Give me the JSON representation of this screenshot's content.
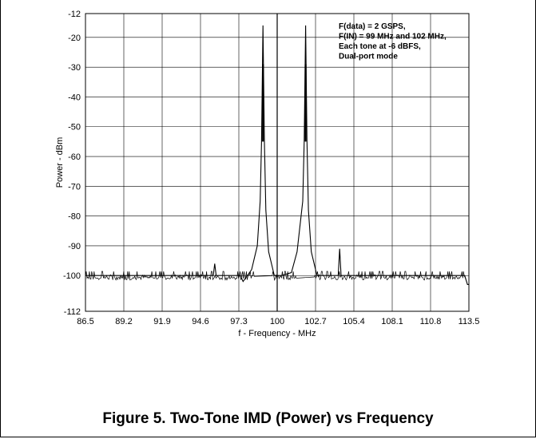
{
  "caption": "Figure 5. Two-Tone IMD (Power) vs Frequency",
  "chart_data": {
    "type": "line",
    "title": "",
    "xlabel": "f - Frequency - MHz",
    "ylabel": "Power - dBm",
    "xlim": [
      86.5,
      113.5
    ],
    "ylim": [
      -112,
      -12
    ],
    "x_ticks": [
      86.5,
      89.2,
      91.9,
      94.6,
      97.3,
      100,
      102.7,
      105.4,
      108.1,
      110.8,
      113.5
    ],
    "x_tick_labels": [
      "86.5",
      "89.2",
      "91.9",
      "94.6",
      "97.3",
      "100",
      "102.7",
      "105.4",
      "108.1",
      "110.8",
      "113.5"
    ],
    "y_ticks": [
      -12,
      -20,
      -30,
      -40,
      -50,
      -60,
      -70,
      -80,
      -90,
      -100,
      -112
    ],
    "y_tick_labels": [
      "-12",
      "-20",
      "-30",
      "-40",
      "-50",
      "-60",
      "-70",
      "-80",
      "-90",
      "-100",
      "-112"
    ],
    "grid": true,
    "noise_floor": -100,
    "series": [
      {
        "x": [
          86.5,
          95.5,
          95.6,
          95.7,
          97.4,
          97.6,
          97.9,
          98.2,
          98.6,
          98.8,
          98.9,
          99.0,
          99.1,
          99.2,
          99.4,
          99.8,
          100.3,
          101.0,
          101.4,
          101.8,
          101.9,
          102.0,
          102.1,
          102.2,
          102.4,
          102.8,
          104.3,
          104.4,
          104.5,
          105.0,
          113.2,
          113.4,
          113.5
        ],
        "y": [
          -100,
          -100,
          -96,
          -100,
          -100,
          -102,
          -100,
          -98,
          -90,
          -75,
          -55,
          -16,
          -55,
          -78,
          -92,
          -100,
          -100,
          -99,
          -92,
          -75,
          -55,
          -16,
          -55,
          -78,
          -92,
          -100,
          -100,
          -91,
          -100,
          -100,
          -100,
          -103,
          -103
        ]
      }
    ],
    "annotations": [
      "F(data) = 2 GSPS,",
      "F(IN) = 99 MHz and 102 MHz,",
      "Each tone at -6 dBFS,",
      "Dual-port mode"
    ]
  }
}
